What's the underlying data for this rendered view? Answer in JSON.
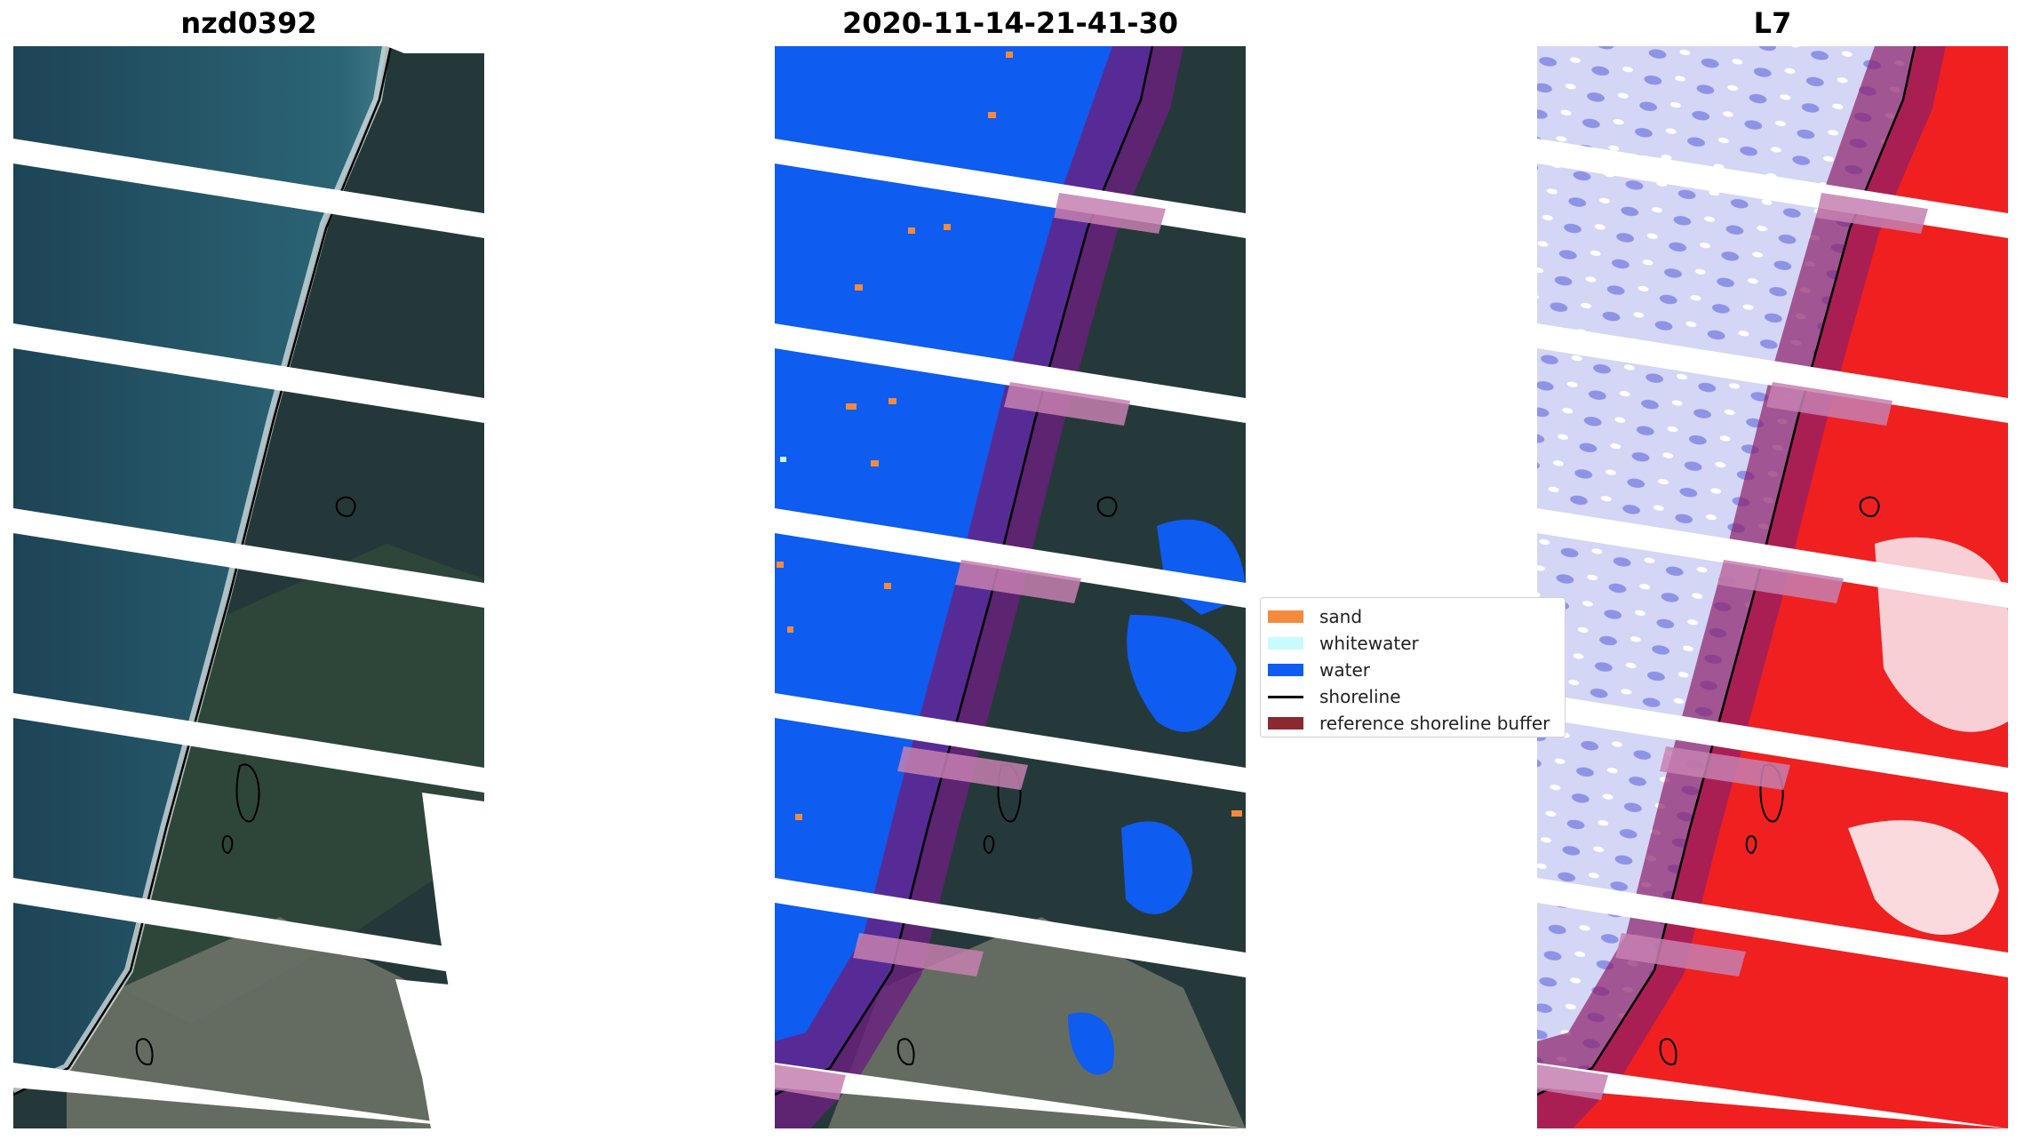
{
  "panels": [
    {
      "title": "nzd0392"
    },
    {
      "title": "2020-11-14-21-41-30"
    },
    {
      "title": "L7"
    }
  ],
  "legend": {
    "items": [
      {
        "label": "sand",
        "color": "#f68a3c",
        "kind": "patch"
      },
      {
        "label": "whitewater",
        "color": "#c8fbfb",
        "kind": "patch"
      },
      {
        "label": "water",
        "color": "#0e5cf0",
        "kind": "patch"
      },
      {
        "label": "shoreline",
        "color": "#000000",
        "kind": "line"
      },
      {
        "label": "reference shoreline buffer",
        "color": "#8b2a2e",
        "kind": "patch"
      }
    ]
  },
  "colors": {
    "ocean": "#1e4a5c",
    "land": "#243a34",
    "urban": "#6d7367",
    "classified_water": "#0e5cf0",
    "buffer_overlay": "#6a1f80",
    "index_water": "#c8c8f5",
    "index_land": "#f01818"
  }
}
